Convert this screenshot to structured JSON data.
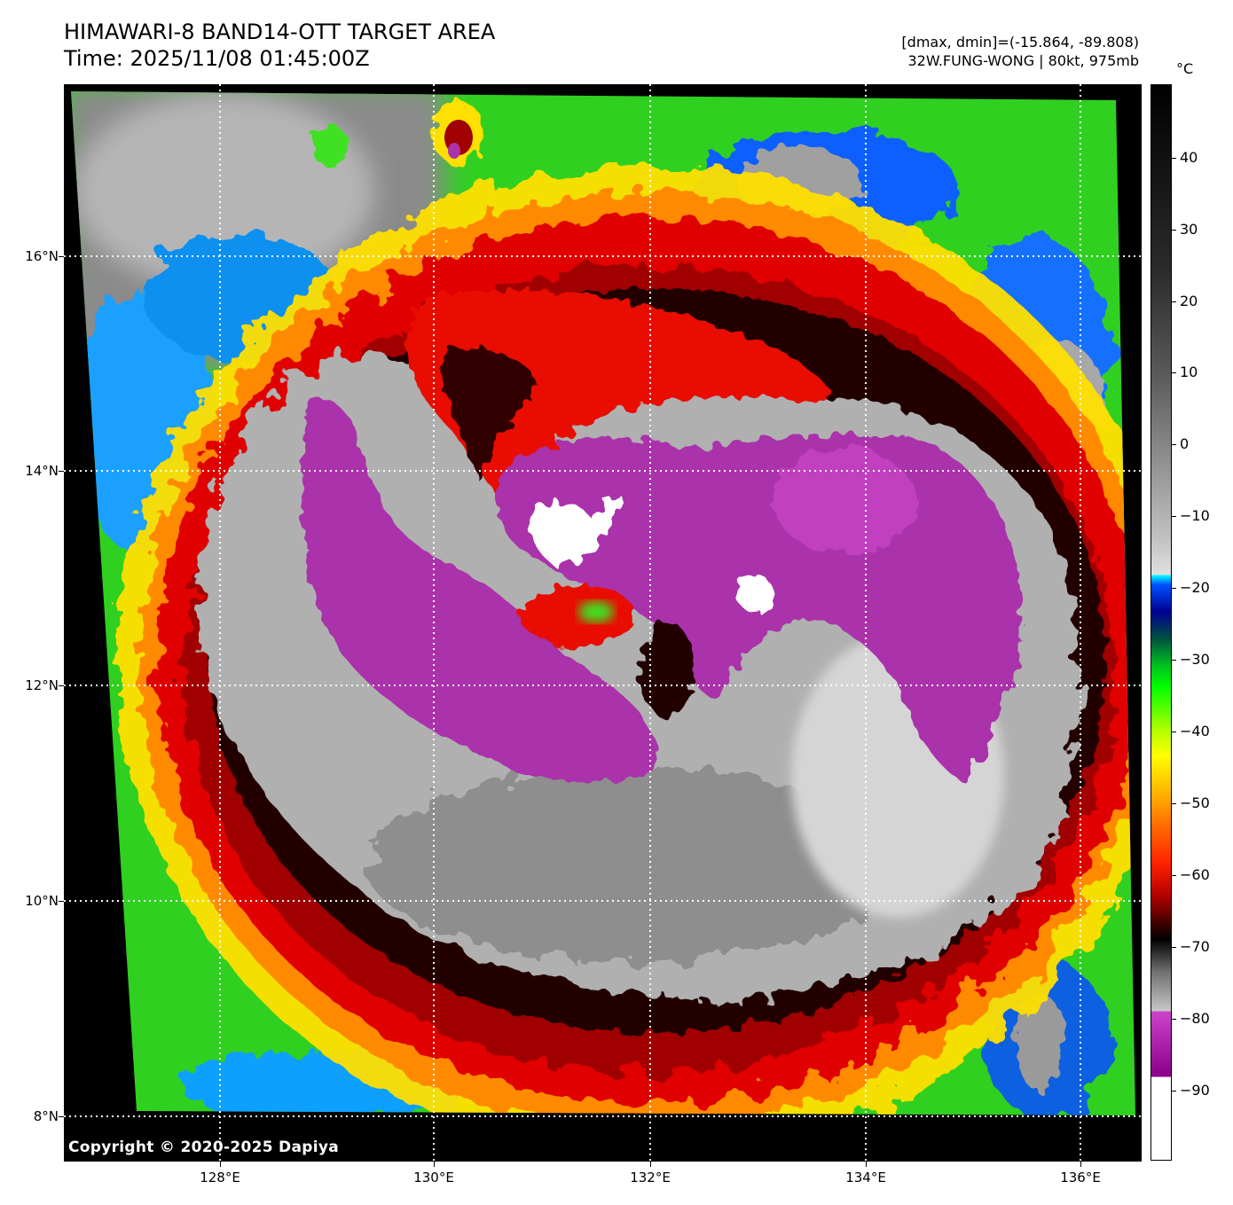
{
  "header": {
    "title": "HIMAWARI-8 BAND14-OTT TARGET AREA",
    "time": "Time: 2025/11/08 01:45:00Z",
    "dminmax": "[dmax, dmin]=(-15.864, -89.808)",
    "storm": "32W.FUNG-WONG | 80kt, 975mb"
  },
  "map": {
    "copyright": "Copyright © 2020-2025 Dapiya",
    "lat_labels": [
      "16°N",
      "14°N",
      "12°N",
      "10°N",
      "8°N"
    ],
    "lon_labels": [
      "128°E",
      "130°E",
      "132°E",
      "134°E",
      "136°E"
    ]
  },
  "colorbar": {
    "unit": "°C",
    "labels": [
      "40",
      "30",
      "20",
      "10",
      "0",
      "−10",
      "−20",
      "−30",
      "−40",
      "−50",
      "−60",
      "−70",
      "−80",
      "−90"
    ]
  },
  "colors": {
    "coldest_white": "#ffffff",
    "overshoot_magenta": "#aa33aa",
    "cold_gray": "#b0b0b0",
    "red": "#e00000",
    "orange": "#ff7000",
    "yellow": "#ffe000",
    "green": "#20e000",
    "blue": "#1060ff",
    "cyan": "#00e8ff",
    "warm_gray": "#606060"
  }
}
